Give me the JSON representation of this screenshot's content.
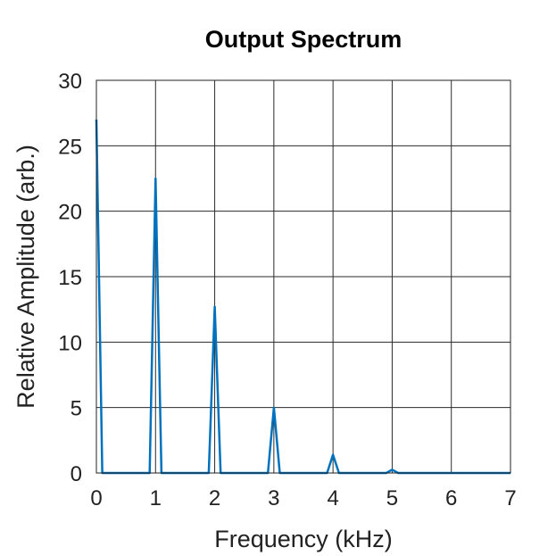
{
  "chart_data": {
    "type": "line",
    "title": "Output Spectrum",
    "xlabel": "Frequency (kHz)",
    "ylabel": "Relative Amplitude (arb.)",
    "xlim": [
      0,
      7
    ],
    "ylim": [
      0,
      30
    ],
    "xticks": [
      "0",
      "1",
      "2",
      "3",
      "4",
      "5",
      "6",
      "7"
    ],
    "yticks": [
      "0",
      "5",
      "10",
      "15",
      "20",
      "25",
      "30"
    ],
    "grid": true,
    "line_color": "#0072bd",
    "series": [
      {
        "x": [
          0,
          0.1,
          0.9,
          1.0,
          1.1,
          1.9,
          2.0,
          2.1,
          2.9,
          3.0,
          3.1,
          3.9,
          4.0,
          4.1,
          4.9,
          5.0,
          5.1,
          7.0
        ],
        "values": [
          27,
          0,
          0,
          22.5,
          0,
          0,
          12.7,
          0,
          0,
          5.0,
          0,
          0,
          1.4,
          0,
          0,
          0.25,
          0,
          0
        ]
      }
    ]
  }
}
